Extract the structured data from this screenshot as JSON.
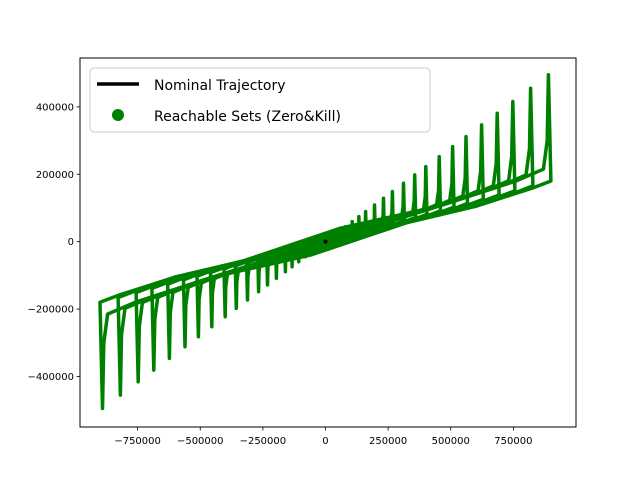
{
  "chart_data": {
    "type": "line",
    "title": "",
    "xlabel": "",
    "ylabel": "",
    "xlim": [
      -980000,
      1000000
    ],
    "ylim": [
      -550000,
      545000
    ],
    "xticks": [
      -750000,
      -500000,
      -250000,
      0,
      250000,
      500000,
      750000
    ],
    "xtick_labels": [
      "−750000",
      "−500000",
      "−250000",
      "0",
      "250000",
      "500000",
      "750000"
    ],
    "yticks": [
      -400000,
      -200000,
      0,
      200000,
      400000
    ],
    "ytick_labels": [
      "−400000",
      "−200000",
      "0",
      "200000",
      "400000"
    ],
    "grid": false,
    "legend_position": "top-left",
    "series": [
      {
        "name": "Nominal Trajectory",
        "kind": "line",
        "color": "#000000",
        "x": [
          0,
          0
        ],
        "y": [
          0,
          0
        ]
      },
      {
        "name": "Reachable Sets (Zero&Kill)",
        "kind": "closed-polygons",
        "color": "#008000",
        "outer_polygon": {
          "x": [
            890000,
            885000,
            870000,
            760000,
            450000,
            300000,
            60000,
            -340000,
            -600000,
            -830000,
            -900000,
            -890000,
            -885000,
            -870000,
            -760000,
            -450000,
            -300000,
            -60000,
            340000,
            600000,
            830000,
            900000
          ],
          "y": [
            495000,
            300000,
            215000,
            180000,
            105000,
            80000,
            40000,
            -60000,
            -105000,
            -160000,
            -180000,
            -495000,
            -300000,
            -215000,
            -180000,
            -105000,
            -80000,
            -40000,
            60000,
            105000,
            160000,
            180000
          ]
        },
        "scales": [
          1.0,
          0.92,
          0.84,
          0.77,
          0.7,
          0.63,
          0.57,
          0.51,
          0.45,
          0.4,
          0.35,
          0.3,
          0.26,
          0.22,
          0.18,
          0.15,
          0.12,
          0.09
        ]
      }
    ]
  },
  "legend": {
    "items": [
      {
        "label": "Nominal Trajectory",
        "marker": "line",
        "color": "#000000"
      },
      {
        "label": "Reachable Sets (Zero&Kill)",
        "marker": "circle",
        "color": "#008000"
      }
    ]
  }
}
